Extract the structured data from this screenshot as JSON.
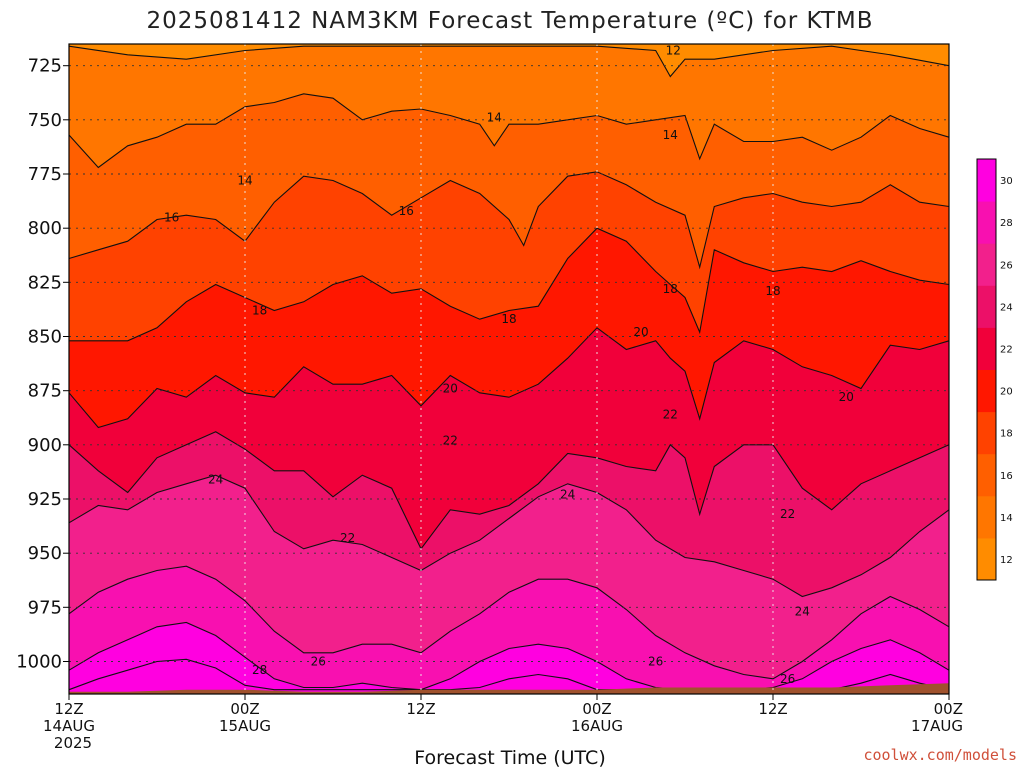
{
  "chart_data": {
    "type": "filled-contour",
    "title": "2025081412 NAM3KM Forecast Temperature (ºC) for KTMB",
    "xlabel": "Forecast Time (UTC)",
    "credit": "coolwx.com/models",
    "y_axis": {
      "ticks": [
        "725",
        "750",
        "775",
        "800",
        "825",
        "850",
        "875",
        "900",
        "925",
        "950",
        "975",
        "1000"
      ],
      "values": [
        725,
        750,
        775,
        800,
        825,
        850,
        875,
        900,
        925,
        950,
        975,
        1000
      ],
      "range": [
        1015,
        715
      ],
      "grid": true
    },
    "x_axis": {
      "ticks": [
        {
          "hour": 0,
          "l1": "12Z",
          "l2": "14AUG",
          "l3": "2025"
        },
        {
          "hour": 12,
          "l1": "00Z",
          "l2": "15AUG"
        },
        {
          "hour": 24,
          "l1": "12Z"
        },
        {
          "hour": 36,
          "l1": "00Z",
          "l2": "16AUG"
        },
        {
          "hour": 48,
          "l1": "12Z"
        },
        {
          "hour": 60,
          "l1": "00Z",
          "l2": "17AUG"
        }
      ],
      "range": [
        0,
        60
      ],
      "grid": true
    },
    "colorbar": {
      "ticks": [
        "12",
        "14",
        "16",
        "18",
        "20",
        "22",
        "24",
        "26",
        "28",
        "30"
      ],
      "values": [
        12,
        14,
        16,
        18,
        20,
        22,
        24,
        26,
        28,
        30
      ],
      "colors": [
        "#ff8c00",
        "#ff7600",
        "#ff5f00",
        "#ff4200",
        "#ff1700",
        "#f1003a",
        "#ec1068",
        "#f2208c",
        "#f810b0",
        "#ff00e0"
      ]
    },
    "contour_labels": [
      {
        "text": "12",
        "hour": 41.2,
        "level": 718
      },
      {
        "text": "14",
        "hour": 29.0,
        "level": 749
      },
      {
        "text": "14",
        "hour": 41.0,
        "level": 757
      },
      {
        "text": "14",
        "hour": 12.0,
        "level": 778
      },
      {
        "text": "16",
        "hour": 7.0,
        "level": 795
      },
      {
        "text": "16",
        "hour": 23.0,
        "level": 792
      },
      {
        "text": "18",
        "hour": 41.0,
        "level": 828
      },
      {
        "text": "18",
        "hour": 48.0,
        "level": 829
      },
      {
        "text": "18",
        "hour": 13.0,
        "level": 838
      },
      {
        "text": "18",
        "hour": 30.0,
        "level": 842
      },
      {
        "text": "20",
        "hour": 39.0,
        "level": 848
      },
      {
        "text": "20",
        "hour": 26.0,
        "level": 874
      },
      {
        "text": "20",
        "hour": 53.0,
        "level": 878
      },
      {
        "text": "22",
        "hour": 41.0,
        "level": 886
      },
      {
        "text": "22",
        "hour": 26.0,
        "level": 898
      },
      {
        "text": "22",
        "hour": 19.0,
        "level": 943
      },
      {
        "text": "22",
        "hour": 49.0,
        "level": 932
      },
      {
        "text": "24",
        "hour": 10.0,
        "level": 916
      },
      {
        "text": "24",
        "hour": 34.0,
        "level": 923
      },
      {
        "text": "24",
        "hour": 50.0,
        "level": 977
      },
      {
        "text": "26",
        "hour": 17.0,
        "level": 1000
      },
      {
        "text": "26",
        "hour": 40.0,
        "level": 1000
      },
      {
        "text": "26",
        "hour": 49.0,
        "level": 1008
      },
      {
        "text": "28",
        "hour": 13.0,
        "level": 1004
      }
    ],
    "isotherms": [
      {
        "level": 12,
        "h": [
          0,
          4,
          8,
          12,
          16,
          20,
          24,
          28,
          32,
          36,
          40,
          41,
          42,
          44,
          48,
          52,
          56,
          60
        ],
        "p": [
          716,
          720,
          722,
          718,
          716,
          716,
          716,
          716,
          716,
          716,
          718,
          730,
          722,
          722,
          718,
          716,
          720,
          725
        ]
      },
      {
        "level": 14,
        "h": [
          0,
          2,
          4,
          6,
          8,
          10,
          12,
          14,
          16,
          18,
          20,
          22,
          24,
          26,
          28,
          29,
          30,
          32,
          34,
          36,
          38,
          40,
          42,
          43,
          44,
          46,
          48,
          50,
          52,
          54,
          56,
          58,
          60
        ],
        "p": [
          757,
          772,
          762,
          758,
          752,
          752,
          744,
          742,
          738,
          740,
          750,
          746,
          745,
          748,
          752,
          762,
          752,
          752,
          750,
          748,
          752,
          750,
          748,
          768,
          752,
          760,
          760,
          758,
          764,
          758,
          748,
          754,
          758
        ]
      },
      {
        "level": 16,
        "h": [
          0,
          2,
          4,
          6,
          8,
          10,
          12,
          14,
          16,
          18,
          20,
          22,
          24,
          26,
          28,
          30,
          31,
          32,
          34,
          36,
          38,
          40,
          42,
          43,
          44,
          46,
          48,
          50,
          52,
          54,
          56,
          58,
          60
        ],
        "p": [
          814,
          810,
          806,
          796,
          794,
          796,
          806,
          788,
          776,
          778,
          784,
          794,
          786,
          778,
          784,
          796,
          808,
          790,
          776,
          774,
          780,
          788,
          794,
          818,
          790,
          786,
          784,
          788,
          790,
          788,
          780,
          788,
          790
        ]
      },
      {
        "level": 18,
        "h": [
          0,
          2,
          4,
          6,
          8,
          10,
          12,
          14,
          16,
          18,
          20,
          22,
          24,
          26,
          28,
          30,
          32,
          34,
          36,
          38,
          40,
          41,
          42,
          43,
          44,
          46,
          48,
          50,
          52,
          54,
          56,
          58,
          60
        ],
        "p": [
          852,
          852,
          852,
          846,
          834,
          826,
          832,
          838,
          834,
          826,
          822,
          830,
          828,
          836,
          842,
          838,
          836,
          814,
          800,
          806,
          820,
          826,
          832,
          848,
          810,
          816,
          820,
          818,
          820,
          815,
          820,
          824,
          826
        ]
      },
      {
        "level": 20,
        "h": [
          0,
          2,
          4,
          6,
          8,
          10,
          12,
          14,
          16,
          18,
          20,
          22,
          24,
          26,
          28,
          30,
          32,
          34,
          36,
          38,
          40,
          41,
          42,
          43,
          44,
          46,
          48,
          50,
          52,
          54,
          56,
          58,
          60
        ],
        "p": [
          876,
          892,
          888,
          874,
          878,
          868,
          876,
          878,
          864,
          872,
          872,
          868,
          882,
          868,
          876,
          878,
          872,
          860,
          846,
          856,
          852,
          860,
          866,
          888,
          862,
          852,
          856,
          864,
          868,
          874,
          854,
          856,
          852
        ]
      },
      {
        "level": 22,
        "h": [
          0,
          2,
          4,
          6,
          8,
          10,
          12,
          14,
          16,
          18,
          20,
          22,
          24,
          26,
          28,
          30,
          32,
          34,
          36,
          38,
          40,
          41,
          42,
          43,
          44,
          46,
          48,
          50,
          52,
          54,
          56,
          58,
          60
        ],
        "p": [
          900,
          912,
          922,
          906,
          900,
          894,
          902,
          912,
          912,
          924,
          914,
          920,
          948,
          930,
          932,
          928,
          918,
          904,
          906,
          910,
          912,
          900,
          906,
          932,
          910,
          900,
          900,
          920,
          930,
          918,
          912,
          906,
          900
        ]
      },
      {
        "level": 24,
        "h": [
          0,
          2,
          4,
          6,
          8,
          10,
          12,
          14,
          16,
          18,
          20,
          22,
          24,
          26,
          28,
          30,
          32,
          34,
          36,
          38,
          40,
          42,
          44,
          46,
          48,
          50,
          52,
          54,
          56,
          58,
          60
        ],
        "p": [
          936,
          928,
          930,
          922,
          918,
          914,
          920,
          940,
          948,
          944,
          946,
          952,
          958,
          950,
          944,
          934,
          924,
          918,
          922,
          930,
          944,
          952,
          954,
          958,
          962,
          970,
          966,
          960,
          952,
          940,
          930
        ]
      },
      {
        "level": 26,
        "h": [
          0,
          2,
          4,
          6,
          8,
          10,
          12,
          14,
          16,
          18,
          20,
          22,
          24,
          26,
          28,
          30,
          32,
          34,
          36,
          38,
          40,
          42,
          44,
          46,
          48,
          50,
          52,
          54,
          56,
          58,
          60
        ],
        "p": [
          978,
          968,
          962,
          958,
          956,
          962,
          972,
          986,
          996,
          996,
          992,
          992,
          996,
          986,
          978,
          968,
          962,
          962,
          966,
          976,
          988,
          996,
          1002,
          1006,
          1008,
          1000,
          990,
          978,
          970,
          976,
          984
        ]
      },
      {
        "level": 28,
        "h": [
          0,
          2,
          4,
          6,
          8,
          10,
          12,
          14,
          16,
          18,
          20,
          22,
          24,
          26,
          28,
          30,
          32,
          34,
          36,
          38,
          40,
          42,
          44,
          46,
          48,
          50,
          52,
          54,
          56,
          58,
          60
        ],
        "p": [
          1004,
          996,
          990,
          984,
          982,
          988,
          998,
          1008,
          1012,
          1012,
          1010,
          1012,
          1013,
          1008,
          1000,
          994,
          992,
          994,
          1000,
          1008,
          1012,
          1013,
          1013,
          1013,
          1012,
          1008,
          1000,
          994,
          990,
          996,
          1004
        ]
      },
      {
        "level": 30,
        "h": [
          0,
          2,
          4,
          6,
          8,
          10,
          12,
          14,
          16,
          18,
          20,
          22,
          24,
          26,
          28,
          30,
          32,
          34,
          36,
          38,
          40,
          42,
          44,
          46,
          48,
          50,
          52,
          54,
          56,
          58,
          60
        ],
        "p": [
          1013,
          1008,
          1004,
          1000,
          999,
          1003,
          1011,
          1013,
          1013,
          1013,
          1013,
          1013,
          1013,
          1013,
          1012,
          1008,
          1006,
          1008,
          1013,
          1013,
          1013,
          1013,
          1013,
          1013,
          1013,
          1013,
          1013,
          1010,
          1006,
          1010,
          1013
        ]
      }
    ],
    "ground": {
      "h": [
        0,
        4,
        8,
        12,
        16,
        20,
        24,
        28,
        32,
        36,
        40,
        44,
        48,
        52,
        56,
        60
      ],
      "p": [
        1014,
        1014,
        1013,
        1013,
        1014,
        1014,
        1013,
        1013,
        1013,
        1013,
        1012,
        1012,
        1012,
        1012,
        1011,
        1010
      ]
    }
  },
  "colors": {
    "ground": "#a0522d",
    "grid": "#333333",
    "contour": "#111111",
    "credit": "#d0503a"
  }
}
